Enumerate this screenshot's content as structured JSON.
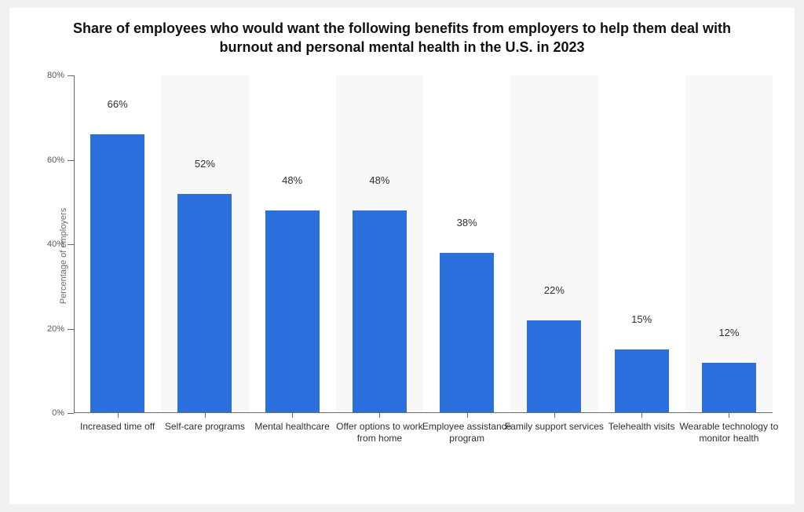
{
  "chart": {
    "type": "bar",
    "title": "Share of employees who would want the following benefits from employers to help them deal with burnout and personal mental health in the U.S. in 2023",
    "title_fontsize": 18,
    "title_fontweight": 700,
    "ylabel": "Percentage of employers",
    "ylabel_fontsize": 11,
    "ylabel_color": "#6b6b6b",
    "ylim": [
      0,
      80
    ],
    "ytick_step": 20,
    "ytick_suffix": "%",
    "ytick_fontsize": 11,
    "ytick_color": "#5a5a5a",
    "xlabel_fontsize": 12,
    "xlabel_color": "#303030",
    "value_label_fontsize": 13,
    "value_label_color": "#303030",
    "value_suffix": "%",
    "bar_color": "#2a6fdb",
    "band_color_even": "#ffffff",
    "band_color_odd": "#f8f8f8",
    "axis_color": "#6b6b6b",
    "background_color": "#ffffff",
    "page_background": "#f1f1f1",
    "bar_width_ratio": 0.62,
    "categories": [
      "Increased time off",
      "Self-care programs",
      "Mental healthcare",
      "Offer options to work from home",
      "Employee assistance program",
      "Family support services",
      "Telehealth visits",
      "Wearable technology to monitor health"
    ],
    "values": [
      66,
      52,
      48,
      48,
      38,
      22,
      15,
      12
    ]
  }
}
